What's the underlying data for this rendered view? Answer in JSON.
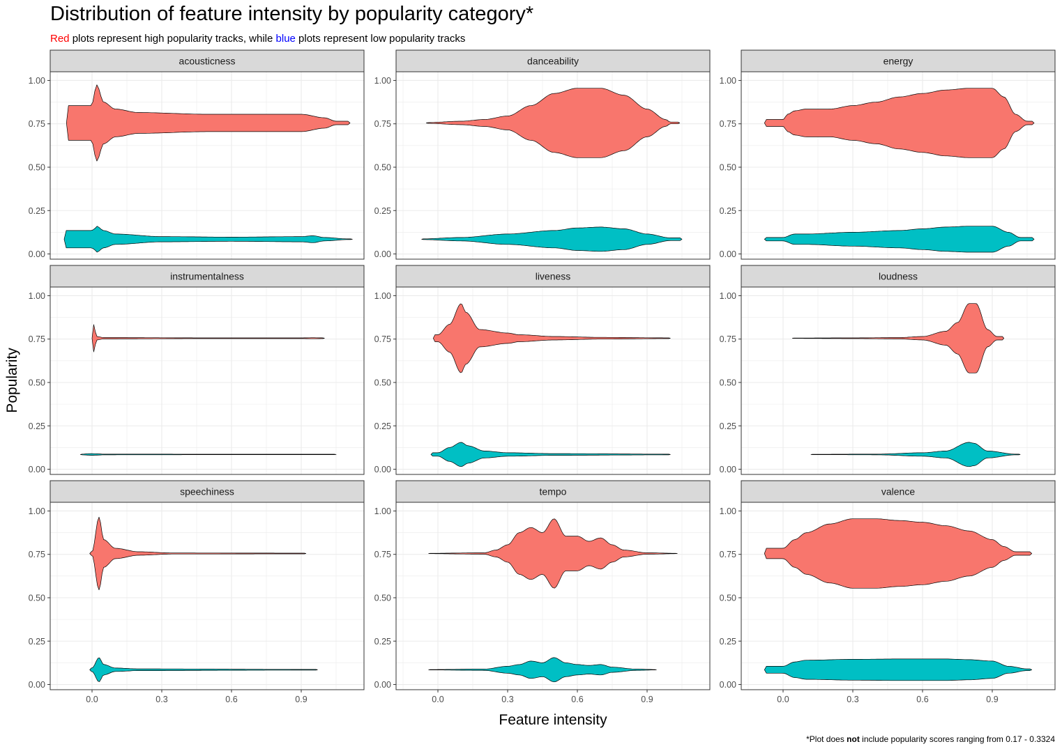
{
  "title": "Distribution of feature intensity by popularity category*",
  "subtitle": {
    "red_word": "Red",
    "part1": " plots represent high popularity tracks, while ",
    "blue_word": "blue",
    "part2": " plots represent low popularity tracks"
  },
  "caption": {
    "prefix": "*Plot does ",
    "bold": "not",
    "suffix": " include popularity scores ranging from 0.17 - 0.3324"
  },
  "colors": {
    "high": "#F8766D",
    "low": "#00BFC4",
    "red_text": "#FF0000",
    "blue_text": "#0000FF",
    "strip_bg": "#D9D9D9",
    "grid": "#EBEBEB"
  },
  "chart_data": {
    "type": "violin",
    "xlabel": "Feature intensity",
    "ylabel": "Popularity",
    "xlim": [
      -0.18,
      1.17
    ],
    "ylim": [
      -0.03,
      1.05
    ],
    "x_ticks": [
      "0.0",
      "0.3",
      "0.6",
      "0.9"
    ],
    "y_ticks": [
      "0.00",
      "0.25",
      "0.50",
      "0.75",
      "1.00"
    ],
    "grid": true,
    "series_y_centers": {
      "high": 0.755,
      "low": 0.085
    },
    "facets": [
      {
        "name": "acousticness",
        "high": {
          "range": [
            -0.11,
            1.11
          ],
          "profile": [
            [
              0.0,
              0.1
            ],
            [
              0.01,
              0.18
            ],
            [
              0.02,
              0.22
            ],
            [
              0.05,
              0.12
            ],
            [
              0.1,
              0.08
            ],
            [
              0.2,
              0.06
            ],
            [
              0.5,
              0.05
            ],
            [
              0.9,
              0.05
            ],
            [
              1.0,
              0.03
            ],
            [
              1.05,
              0.01
            ]
          ]
        },
        "low": {
          "range": [
            -0.12,
            1.12
          ],
          "profile": [
            [
              0.0,
              0.05
            ],
            [
              0.01,
              0.06
            ],
            [
              0.02,
              0.075
            ],
            [
              0.05,
              0.05
            ],
            [
              0.1,
              0.03
            ],
            [
              0.3,
              0.015
            ],
            [
              0.6,
              0.012
            ],
            [
              0.9,
              0.015
            ],
            [
              0.95,
              0.02
            ],
            [
              1.0,
              0.01
            ],
            [
              1.1,
              0.002
            ]
          ]
        }
      },
      {
        "name": "danceability",
        "high": {
          "range": [
            -0.05,
            1.04
          ],
          "profile": [
            [
              -0.05,
              0.002
            ],
            [
              0.1,
              0.01
            ],
            [
              0.2,
              0.02
            ],
            [
              0.3,
              0.04
            ],
            [
              0.4,
              0.1
            ],
            [
              0.5,
              0.17
            ],
            [
              0.6,
              0.2
            ],
            [
              0.7,
              0.2
            ],
            [
              0.8,
              0.16
            ],
            [
              0.9,
              0.08
            ],
            [
              0.98,
              0.02
            ],
            [
              1.0,
              0.005
            ]
          ]
        },
        "low": {
          "range": [
            -0.07,
            1.05
          ],
          "profile": [
            [
              -0.07,
              0.002
            ],
            [
              0.1,
              0.01
            ],
            [
              0.3,
              0.03
            ],
            [
              0.5,
              0.05
            ],
            [
              0.6,
              0.065
            ],
            [
              0.7,
              0.07
            ],
            [
              0.8,
              0.06
            ],
            [
              0.9,
              0.03
            ],
            [
              1.0,
              0.008
            ]
          ]
        }
      },
      {
        "name": "energy",
        "high": {
          "range": [
            -0.08,
            1.08
          ],
          "profile": [
            [
              0.0,
              0.02
            ],
            [
              0.02,
              0.05
            ],
            [
              0.05,
              0.07
            ],
            [
              0.1,
              0.08
            ],
            [
              0.2,
              0.08
            ],
            [
              0.3,
              0.1
            ],
            [
              0.4,
              0.12
            ],
            [
              0.5,
              0.15
            ],
            [
              0.6,
              0.17
            ],
            [
              0.7,
              0.19
            ],
            [
              0.8,
              0.2
            ],
            [
              0.9,
              0.2
            ],
            [
              0.95,
              0.15
            ],
            [
              1.0,
              0.05
            ],
            [
              1.05,
              0.01
            ]
          ]
        },
        "low": {
          "range": [
            -0.08,
            1.08
          ],
          "profile": [
            [
              0.0,
              0.01
            ],
            [
              0.05,
              0.03
            ],
            [
              0.1,
              0.03
            ],
            [
              0.3,
              0.04
            ],
            [
              0.5,
              0.05
            ],
            [
              0.6,
              0.06
            ],
            [
              0.7,
              0.07
            ],
            [
              0.8,
              0.075
            ],
            [
              0.9,
              0.075
            ],
            [
              0.97,
              0.04
            ],
            [
              1.02,
              0.01
            ]
          ]
        }
      },
      {
        "name": "instrumentalness",
        "high": {
          "range": [
            0.0,
            1.0
          ],
          "profile": [
            [
              0.0,
              0.12
            ],
            [
              0.002,
              0.21
            ],
            [
              0.006,
              0.08
            ],
            [
              0.02,
              0.01
            ],
            [
              0.05,
              0.004
            ],
            [
              0.5,
              0.002
            ],
            [
              0.9,
              0.002
            ],
            [
              0.95,
              0.003
            ],
            [
              1.0,
              0.002
            ]
          ]
        },
        "low": {
          "range": [
            -0.05,
            1.05
          ],
          "profile": [
            [
              -0.05,
              0.002
            ],
            [
              0.0,
              0.005
            ],
            [
              0.02,
              0.004
            ],
            [
              0.05,
              0.002
            ],
            [
              0.5,
              0.0015
            ],
            [
              1.0,
              0.0015
            ]
          ]
        }
      },
      {
        "name": "liveness",
        "high": {
          "range": [
            -0.02,
            1.0
          ],
          "profile": [
            [
              0.0,
              0.02
            ],
            [
              0.05,
              0.08
            ],
            [
              0.1,
              0.2
            ],
            [
              0.12,
              0.15
            ],
            [
              0.18,
              0.05
            ],
            [
              0.3,
              0.03
            ],
            [
              0.35,
              0.02
            ],
            [
              0.5,
              0.01
            ],
            [
              0.7,
              0.005
            ],
            [
              1.0,
              0.002
            ]
          ]
        },
        "low": {
          "range": [
            -0.03,
            1.0
          ],
          "profile": [
            [
              0.0,
              0.01
            ],
            [
              0.05,
              0.04
            ],
            [
              0.1,
              0.07
            ],
            [
              0.13,
              0.05
            ],
            [
              0.2,
              0.02
            ],
            [
              0.3,
              0.01
            ],
            [
              0.5,
              0.005
            ],
            [
              1.0,
              0.002
            ]
          ]
        }
      },
      {
        "name": "loudness",
        "high": {
          "range": [
            0.04,
            0.95
          ],
          "profile": [
            [
              0.04,
              0.001
            ],
            [
              0.3,
              0.002
            ],
            [
              0.5,
              0.004
            ],
            [
              0.6,
              0.01
            ],
            [
              0.7,
              0.04
            ],
            [
              0.75,
              0.09
            ],
            [
              0.8,
              0.2
            ],
            [
              0.83,
              0.2
            ],
            [
              0.88,
              0.05
            ],
            [
              0.92,
              0.01
            ]
          ]
        },
        "low": {
          "range": [
            0.12,
            1.02
          ],
          "profile": [
            [
              0.12,
              0.001
            ],
            [
              0.4,
              0.002
            ],
            [
              0.6,
              0.01
            ],
            [
              0.7,
              0.02
            ],
            [
              0.8,
              0.07
            ],
            [
              0.82,
              0.065
            ],
            [
              0.88,
              0.02
            ],
            [
              1.0,
              0.002
            ]
          ]
        }
      },
      {
        "name": "speechiness",
        "high": {
          "range": [
            -0.01,
            0.92
          ],
          "profile": [
            [
              0.0,
              0.01
            ],
            [
              0.03,
              0.21
            ],
            [
              0.05,
              0.08
            ],
            [
              0.1,
              0.03
            ],
            [
              0.2,
              0.01
            ],
            [
              0.35,
              0.003
            ],
            [
              0.9,
              0.002
            ]
          ]
        },
        "low": {
          "range": [
            -0.01,
            0.97
          ],
          "profile": [
            [
              0.0,
              0.01
            ],
            [
              0.03,
              0.07
            ],
            [
              0.05,
              0.03
            ],
            [
              0.1,
              0.01
            ],
            [
              0.2,
              0.005
            ],
            [
              0.9,
              0.002
            ]
          ]
        }
      },
      {
        "name": "tempo",
        "high": {
          "range": [
            -0.04,
            1.03
          ],
          "profile": [
            [
              -0.04,
              0.001
            ],
            [
              0.2,
              0.004
            ],
            [
              0.25,
              0.02
            ],
            [
              0.3,
              0.05
            ],
            [
              0.35,
              0.12
            ],
            [
              0.4,
              0.15
            ],
            [
              0.45,
              0.12
            ],
            [
              0.5,
              0.2
            ],
            [
              0.55,
              0.1
            ],
            [
              0.6,
              0.1
            ],
            [
              0.65,
              0.07
            ],
            [
              0.7,
              0.09
            ],
            [
              0.75,
              0.05
            ],
            [
              0.8,
              0.02
            ],
            [
              0.9,
              0.004
            ],
            [
              1.03,
              0.001
            ]
          ]
        },
        "low": {
          "range": [
            -0.04,
            0.94
          ],
          "profile": [
            [
              -0.04,
              0.001
            ],
            [
              0.2,
              0.004
            ],
            [
              0.3,
              0.02
            ],
            [
              0.35,
              0.03
            ],
            [
              0.4,
              0.05
            ],
            [
              0.45,
              0.04
            ],
            [
              0.5,
              0.07
            ],
            [
              0.55,
              0.04
            ],
            [
              0.6,
              0.03
            ],
            [
              0.65,
              0.025
            ],
            [
              0.7,
              0.03
            ],
            [
              0.75,
              0.015
            ],
            [
              0.85,
              0.004
            ],
            [
              0.94,
              0.001
            ]
          ]
        }
      },
      {
        "name": "valence",
        "high": {
          "range": [
            -0.08,
            1.07
          ],
          "profile": [
            [
              0.0,
              0.03
            ],
            [
              0.05,
              0.08
            ],
            [
              0.1,
              0.12
            ],
            [
              0.2,
              0.17
            ],
            [
              0.3,
              0.2
            ],
            [
              0.4,
              0.2
            ],
            [
              0.5,
              0.19
            ],
            [
              0.6,
              0.18
            ],
            [
              0.7,
              0.16
            ],
            [
              0.8,
              0.13
            ],
            [
              0.9,
              0.08
            ],
            [
              0.95,
              0.04
            ],
            [
              1.0,
              0.01
            ]
          ]
        },
        "low": {
          "range": [
            -0.08,
            1.07
          ],
          "profile": [
            [
              0.0,
              0.02
            ],
            [
              0.05,
              0.045
            ],
            [
              0.1,
              0.055
            ],
            [
              0.3,
              0.06
            ],
            [
              0.5,
              0.062
            ],
            [
              0.7,
              0.062
            ],
            [
              0.8,
              0.058
            ],
            [
              0.9,
              0.05
            ],
            [
              0.97,
              0.02
            ],
            [
              1.05,
              0.005
            ]
          ]
        }
      }
    ]
  }
}
